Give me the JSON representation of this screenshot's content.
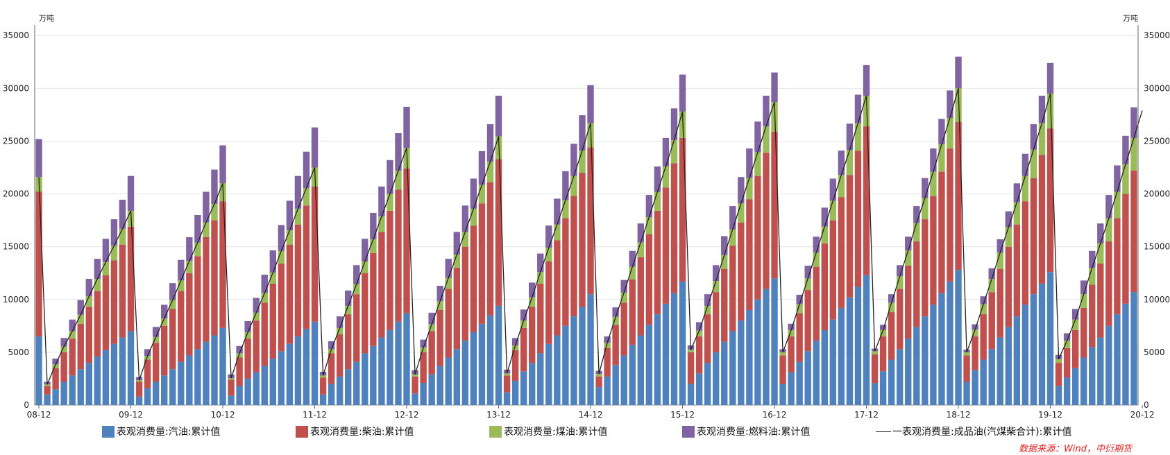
{
  "chart_data": {
    "type": "bar",
    "stacked": true,
    "y_unit_left": "万吨",
    "y_unit_right": "万吨",
    "ylim": [
      0,
      36000
    ],
    "yticks": [
      0,
      5000,
      10000,
      15000,
      20000,
      25000,
      30000,
      35000
    ],
    "x_tick_labels": [
      "08-12",
      "09-12",
      "10-12",
      "11-12",
      "12-12",
      "13-12",
      "14-12",
      "15-12",
      "16-12",
      "17-12",
      "18-12",
      "19-12",
      "20-12"
    ],
    "grid": true,
    "legend_position": "bottom",
    "series_colors": [
      "#4f81bd",
      "#c0504d",
      "#9bbb59",
      "#8064a2",
      "#222222"
    ],
    "series": [
      {
        "name": "表观消费量:汽油:累计值",
        "type": "bar",
        "color": "#4f81bd",
        "values": [
          6500,
          1000,
          1500,
          2200,
          2800,
          3400,
          4000,
          4600,
          5200,
          5800,
          6400,
          7000,
          800,
          1600,
          2200,
          2800,
          3400,
          4100,
          4700,
          5300,
          6000,
          6600,
          7300,
          900,
          1800,
          2500,
          3100,
          3700,
          4400,
          5100,
          5800,
          6500,
          7200,
          7900,
          1000,
          2000,
          2700,
          3400,
          4100,
          4900,
          5600,
          6400,
          7100,
          7900,
          8700,
          1100,
          2100,
          2900,
          3700,
          4500,
          5300,
          6100,
          6900,
          7700,
          8500,
          9400,
          1200,
          2300,
          3200,
          4000,
          4900,
          5800,
          6600,
          7500,
          8400,
          9300,
          10500,
          1700,
          2700,
          3800,
          4700,
          5700,
          6600,
          7600,
          8600,
          9600,
          10600,
          11700,
          2000,
          3000,
          4000,
          5000,
          6000,
          7000,
          8000,
          9000,
          10000,
          11000,
          12000,
          2000,
          3100,
          4100,
          5100,
          6100,
          7100,
          8100,
          9200,
          10200,
          11200,
          12300,
          2100,
          3200,
          4300,
          5300,
          6300,
          7400,
          8400,
          9500,
          10600,
          11700,
          12800,
          2200,
          3300,
          4300,
          5300,
          6400,
          7400,
          8400,
          9500,
          10500,
          11500,
          12600,
          1800,
          2600,
          3500,
          4500,
          5500,
          6400,
          7500,
          8600,
          9600,
          10700
        ]
      },
      {
        "name": "表观消费量:柴油:累计值",
        "type": "bar",
        "color": "#c0504d",
        "values": [
          13700,
          800,
          2000,
          2800,
          3500,
          4300,
          5300,
          6200,
          7100,
          7900,
          8800,
          9900,
          1400,
          2700,
          3700,
          4700,
          5700,
          6700,
          7800,
          8800,
          9900,
          10900,
          12000,
          1500,
          2700,
          3800,
          4900,
          6000,
          7100,
          8300,
          9400,
          10600,
          11700,
          12800,
          1600,
          2900,
          4000,
          5200,
          6400,
          7600,
          8800,
          10000,
          11300,
          12500,
          13700,
          1600,
          2900,
          4100,
          5300,
          6500,
          7700,
          8900,
          10100,
          11400,
          12600,
          13900,
          1600,
          2900,
          4100,
          5300,
          6600,
          7800,
          9000,
          10200,
          11400,
          12700,
          13900,
          1000,
          2700,
          3800,
          5000,
          6200,
          7400,
          8600,
          9800,
          11000,
          12300,
          13600,
          3000,
          3500,
          4600,
          5700,
          6900,
          8100,
          9300,
          10500,
          11700,
          12900,
          13900,
          2700,
          3400,
          4600,
          5800,
          7000,
          8200,
          9400,
          10500,
          11600,
          12900,
          14100,
          2700,
          3300,
          4500,
          5700,
          6900,
          8100,
          9200,
          10300,
          11500,
          12600,
          14000,
          2500,
          3200,
          4300,
          5400,
          6500,
          7600,
          8700,
          9800,
          11000,
          12200,
          13600,
          2200,
          2800,
          3600,
          4700,
          5900,
          7000,
          8000,
          9100,
          10400,
          11500,
          12700
        ]
      },
      {
        "name": "表观消费量:煤油:累计值",
        "type": "bar",
        "color": "#9bbb59",
        "values": [
          1400,
          150,
          350,
          550,
          700,
          850,
          1000,
          1150,
          1250,
          1400,
          1500,
          1500,
          150,
          350,
          550,
          700,
          850,
          1000,
          1150,
          1300,
          1400,
          1550,
          1700,
          150,
          400,
          600,
          750,
          900,
          1050,
          1200,
          1350,
          1500,
          1650,
          1800,
          200,
          400,
          600,
          800,
          950,
          1100,
          1300,
          1450,
          1600,
          1800,
          1950,
          200,
          450,
          650,
          850,
          1050,
          1250,
          1400,
          1600,
          1750,
          1950,
          2150,
          200,
          450,
          700,
          900,
          1100,
          1300,
          1500,
          1700,
          1900,
          2100,
          2300,
          250,
          500,
          750,
          950,
          1200,
          1400,
          1600,
          1800,
          2000,
          2200,
          2500,
          250,
          550,
          800,
          1050,
          1300,
          1550,
          1800,
          2000,
          2250,
          2500,
          2800,
          300,
          600,
          850,
          1100,
          1350,
          1600,
          1850,
          2100,
          2350,
          2600,
          2900,
          300,
          600,
          900,
          1200,
          1450,
          1750,
          2000,
          2300,
          2600,
          2900,
          3200,
          300,
          650,
          950,
          1250,
          1550,
          1850,
          2100,
          2400,
          2700,
          3000,
          3300,
          350,
          700,
          1000,
          1300,
          1600,
          1900,
          2200,
          2500,
          2800,
          3100,
          3500
        ]
      },
      {
        "name": "表观消费量:燃料油:累计值",
        "type": "bar",
        "color": "#8064a2",
        "values": [
          3600,
          250,
          550,
          800,
          1100,
          1400,
          1650,
          1900,
          2200,
          2500,
          2750,
          3300,
          300,
          650,
          950,
          1300,
          1600,
          1950,
          2250,
          2600,
          2900,
          3250,
          3600,
          350,
          700,
          1050,
          1400,
          1750,
          2100,
          2450,
          2800,
          3100,
          3450,
          3800,
          350,
          750,
          1100,
          1450,
          1800,
          2150,
          2500,
          2850,
          3200,
          3550,
          3900,
          400,
          750,
          1100,
          1450,
          1800,
          2150,
          2500,
          2850,
          3200,
          3550,
          3850,
          350,
          700,
          1050,
          1400,
          1750,
          2100,
          2450,
          2750,
          3050,
          3350,
          3600,
          300,
          600,
          900,
          1200,
          1500,
          1800,
          2100,
          2400,
          2700,
          3000,
          3500,
          400,
          800,
          1100,
          1500,
          1800,
          2200,
          2500,
          2800,
          2900,
          2900,
          2800,
          300,
          600,
          900,
          1200,
          1500,
          1800,
          2100,
          2300,
          2500,
          2700,
          2900,
          250,
          500,
          800,
          1050,
          1300,
          1600,
          1900,
          2200,
          2400,
          2600,
          3000,
          250,
          500,
          750,
          1000,
          1250,
          1500,
          1800,
          2100,
          2400,
          2600,
          2900,
          400,
          700,
          1000,
          1300,
          1600,
          1900,
          2200,
          2500,
          2700,
          2900,
          3000
        ]
      },
      {
        "name": "一表观消费量:成品油(汽煤柴合计):累计值",
        "type": "line",
        "color": "#222222",
        "values": [
          21600,
          1950,
          3850,
          5550,
          7000,
          8550,
          10300,
          11950,
          13550,
          15100,
          16700,
          18400,
          2350,
          4650,
          6450,
          8200,
          9950,
          11800,
          13650,
          15400,
          17300,
          19050,
          21000,
          2550,
          4900,
          6900,
          8750,
          10600,
          12550,
          14600,
          16550,
          18600,
          20550,
          22500,
          2800,
          5300,
          7300,
          9400,
          11450,
          13600,
          15700,
          17850,
          20000,
          22200,
          24350,
          2900,
          5450,
          7650,
          9850,
          12050,
          14250,
          16400,
          18600,
          20850,
          23050,
          25450,
          3000,
          5650,
          8000,
          10200,
          12600,
          14900,
          17100,
          19400,
          21700,
          24100,
          26700,
          2950,
          5900,
          8350,
          10650,
          13100,
          15400,
          17800,
          20200,
          22600,
          25100,
          27800,
          5250,
          7050,
          9400,
          11750,
          14200,
          16650,
          19100,
          21500,
          23950,
          26400,
          28700,
          5000,
          7100,
          9550,
          12000,
          14450,
          16900,
          19350,
          21800,
          24150,
          26700,
          29300,
          5100,
          7100,
          9700,
          12200,
          14650,
          17250,
          19600,
          22100,
          24700,
          27200,
          30000,
          5000,
          7150,
          9550,
          11950,
          14450,
          16850,
          19200,
          21700,
          24200,
          26700,
          29500,
          4350,
          6100,
          8100,
          10500,
          13000,
          15300,
          17700,
          20200,
          22800,
          25300,
          27900
        ]
      }
    ]
  },
  "source_text": "数据来源：Wind，中衍期货"
}
